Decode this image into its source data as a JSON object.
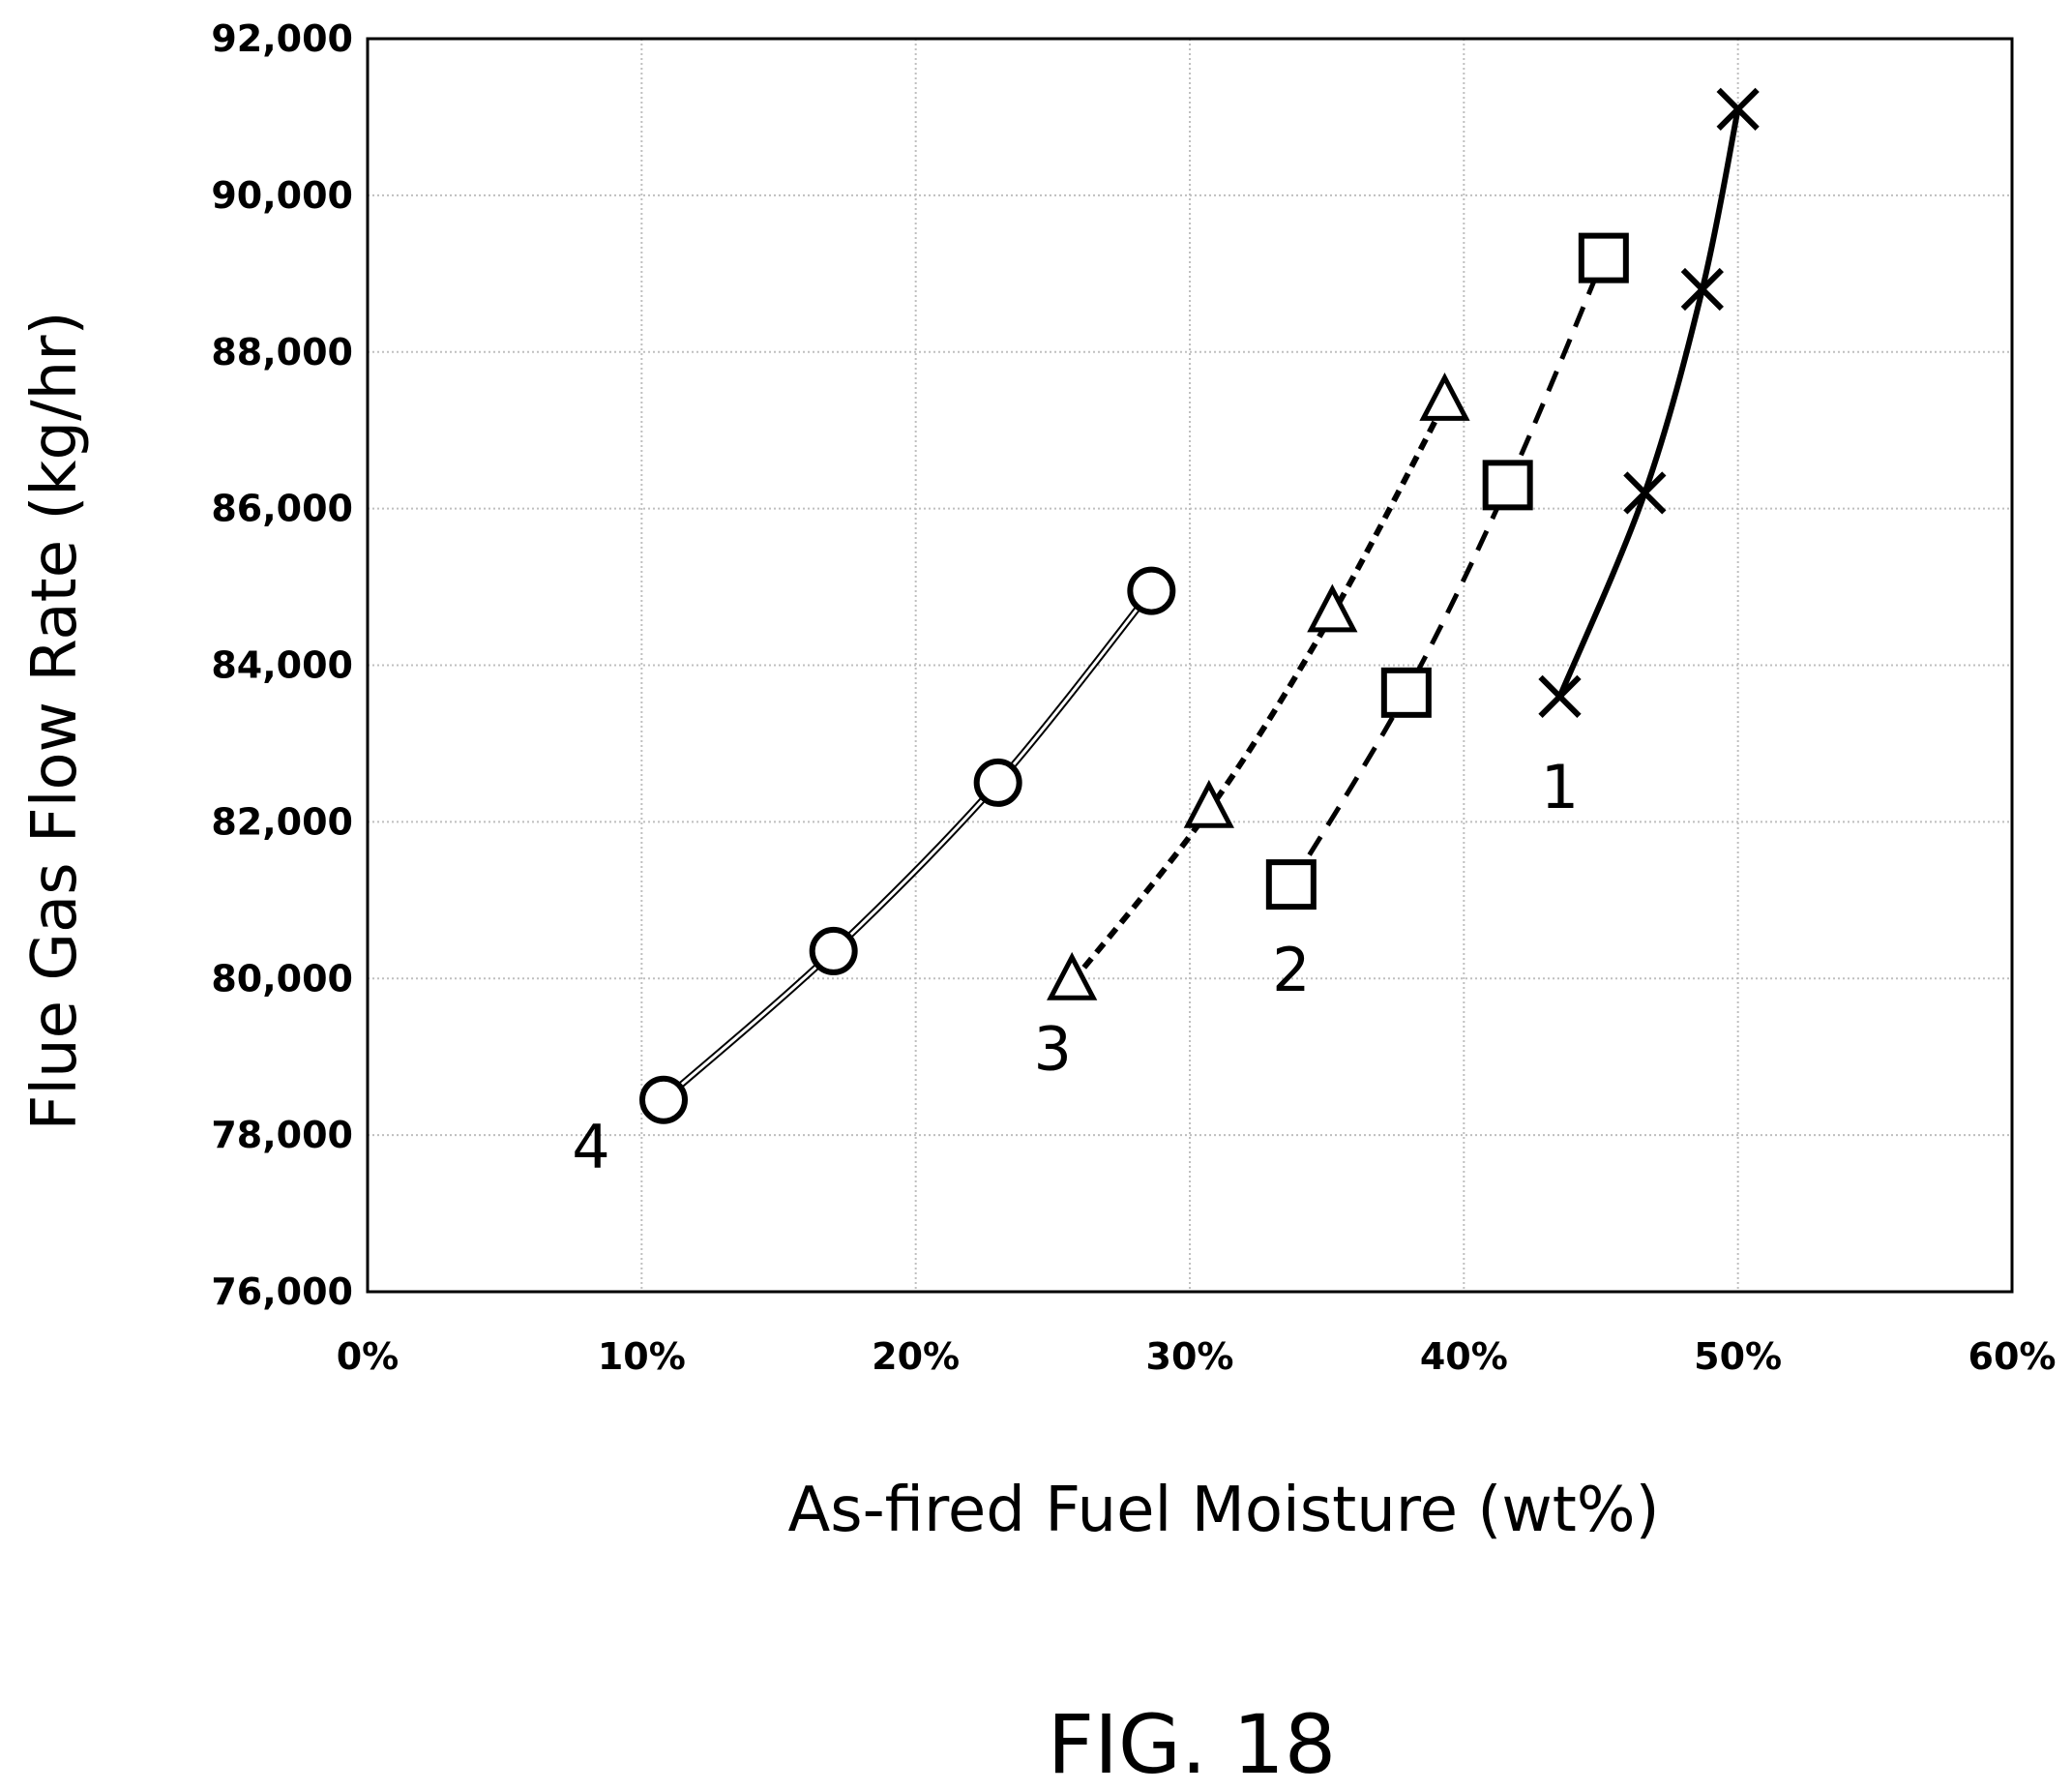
{
  "figure": {
    "caption": "FIG. 18"
  },
  "chart_data": {
    "type": "line",
    "title": "",
    "xlabel": "As-fired Fuel Moisture (wt%)",
    "ylabel": "Flue Gas Flow Rate (kg/hr)",
    "xlim": [
      0,
      60
    ],
    "ylim": [
      76000,
      92000
    ],
    "x_ticks": [
      0,
      10,
      20,
      30,
      40,
      50,
      60
    ],
    "x_tick_labels": [
      "0%",
      "10%",
      "20%",
      "30%",
      "40%",
      "50%",
      "60%"
    ],
    "y_ticks": [
      76000,
      78000,
      80000,
      82000,
      84000,
      86000,
      88000,
      90000,
      92000
    ],
    "y_tick_labels": [
      "76,000",
      "78,000",
      "80,000",
      "82,000",
      "84,000",
      "86,000",
      "88,000",
      "90,000",
      "92,000"
    ],
    "grid": true,
    "legend": "none",
    "series": [
      {
        "label": "1",
        "marker": "x",
        "line_style": "solid-thick",
        "x": [
          43.5,
          46.6,
          48.7,
          50.0
        ],
        "y": [
          83600,
          86200,
          88800,
          91100
        ]
      },
      {
        "label": "2",
        "marker": "square",
        "line_style": "dashed",
        "x": [
          33.7,
          37.9,
          41.6,
          45.1
        ],
        "y": [
          81200,
          83650,
          86300,
          89200
        ]
      },
      {
        "label": "3",
        "marker": "triangle",
        "line_style": "dotted-dashed",
        "x": [
          25.7,
          30.7,
          35.2,
          39.3
        ],
        "y": [
          79950,
          82150,
          84650,
          87350
        ]
      },
      {
        "label": "4",
        "marker": "circle",
        "line_style": "double",
        "x": [
          10.8,
          17.0,
          23.0,
          28.6
        ],
        "y": [
          78450,
          80350,
          82500,
          84950
        ]
      }
    ]
  }
}
